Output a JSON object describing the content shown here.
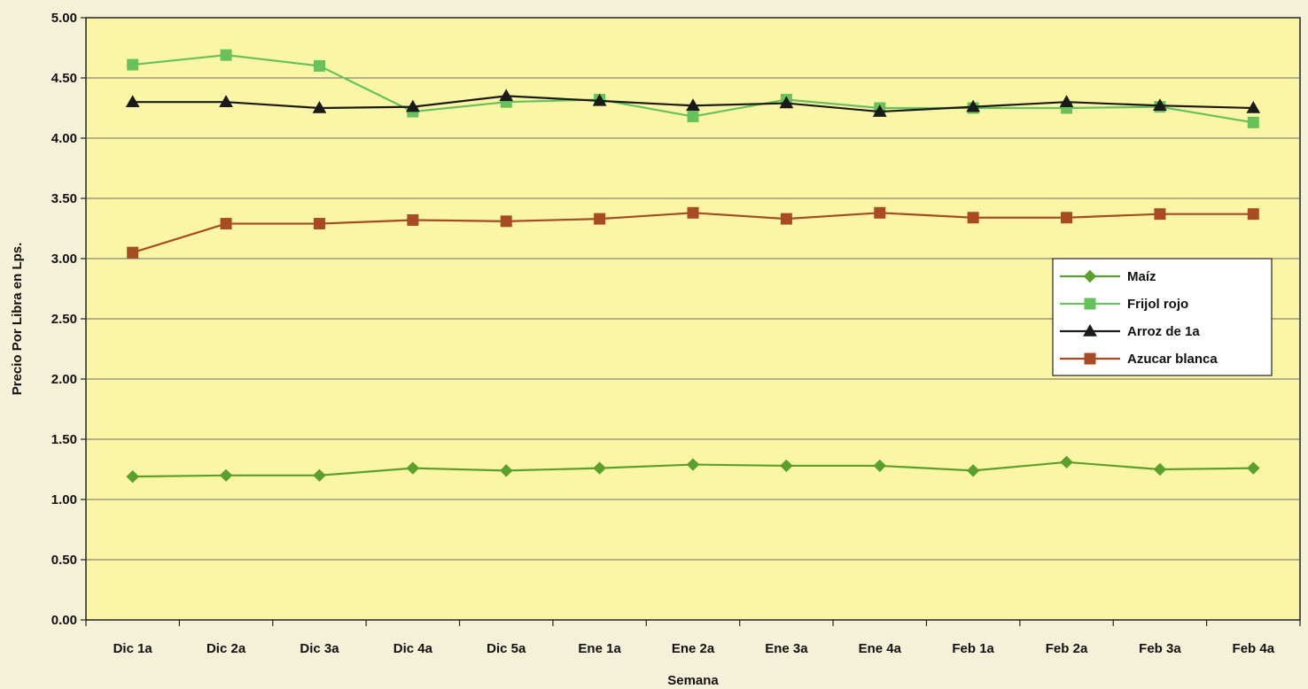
{
  "chart_data": {
    "type": "line",
    "title": "",
    "xlabel": "Semana",
    "ylabel": "Precio Por Libra en Lps.",
    "ylim": [
      0,
      5
    ],
    "yticks": [
      "0.00",
      "0.50",
      "1.00",
      "1.50",
      "2.00",
      "2.50",
      "3.00",
      "3.50",
      "4.00",
      "4.50",
      "5.00"
    ],
    "grid": "horizontal",
    "legend_position": "right",
    "categories": [
      "Dic 1a",
      "Dic 2a",
      "Dic 3a",
      "Dic 4a",
      "Dic 5a",
      "Ene 1a",
      "Ene 2a",
      "Ene 3a",
      "Ene 4a",
      "Feb 1a",
      "Feb 2a",
      "Feb 3a",
      "Feb 4a"
    ],
    "series": [
      {
        "name": "Maíz",
        "color": "#5aa02c",
        "marker": "diamond",
        "values": [
          1.19,
          1.2,
          1.2,
          1.26,
          1.24,
          1.26,
          1.29,
          1.28,
          1.28,
          1.24,
          1.31,
          1.25,
          1.26
        ]
      },
      {
        "name": "Frijol rojo",
        "color": "#66c25a",
        "marker": "square",
        "values": [
          4.61,
          4.69,
          4.6,
          4.22,
          4.3,
          4.32,
          4.18,
          4.32,
          4.25,
          4.25,
          4.25,
          4.26,
          4.13
        ]
      },
      {
        "name": "Arroz de 1a",
        "color": "#1a1a1a",
        "marker": "triangle",
        "values": [
          4.3,
          4.3,
          4.25,
          4.26,
          4.35,
          4.31,
          4.27,
          4.29,
          4.22,
          4.26,
          4.3,
          4.27,
          4.25
        ]
      },
      {
        "name": "Azucar blanca",
        "color": "#a84a22",
        "marker": "square",
        "values": [
          3.05,
          3.29,
          3.29,
          3.32,
          3.31,
          3.33,
          3.38,
          3.33,
          3.38,
          3.34,
          3.34,
          3.37,
          3.37
        ]
      }
    ]
  }
}
